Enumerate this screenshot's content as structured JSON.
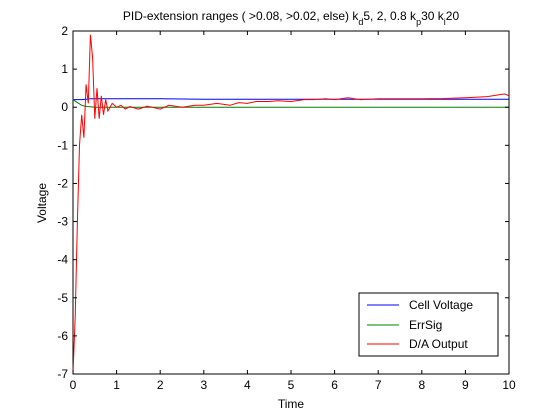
{
  "chart_data": {
    "type": "line",
    "title_parts": [
      {
        "text": "PID-extension ranges ( >0.08, >0.02, else) k",
        "sub": false
      },
      {
        "text": "d",
        "sub": true
      },
      {
        "text": "5, 2, 0.8 k",
        "sub": false
      },
      {
        "text": "p",
        "sub": true
      },
      {
        "text": "30 k",
        "sub": false
      },
      {
        "text": "i",
        "sub": true
      },
      {
        "text": "20",
        "sub": false
      }
    ],
    "xlabel": "Time",
    "ylabel": "Voltage",
    "xlim": [
      0,
      10
    ],
    "ylim": [
      -7,
      2
    ],
    "xticks": [
      0,
      1,
      2,
      3,
      4,
      5,
      6,
      7,
      8,
      9,
      10
    ],
    "yticks": [
      -7,
      -6,
      -5,
      -4,
      -3,
      -2,
      -1,
      0,
      1,
      2
    ],
    "grid": false,
    "legend_position": "lower-right",
    "series": [
      {
        "name": "Cell Voltage",
        "color": "#0000ff",
        "x": [
          0,
          0.1,
          0.2,
          0.3,
          0.4,
          0.5,
          1,
          2,
          3,
          4,
          5,
          6,
          7,
          8,
          9,
          10
        ],
        "y": [
          0.2,
          0.2,
          0.2,
          0.21,
          0.22,
          0.22,
          0.22,
          0.22,
          0.21,
          0.21,
          0.21,
          0.21,
          0.21,
          0.21,
          0.21,
          0.21
        ]
      },
      {
        "name": "ErrSig",
        "color": "#008000",
        "x": [
          0,
          0.1,
          0.2,
          0.3,
          0.4,
          0.5,
          1,
          2,
          3,
          4,
          5,
          6,
          7,
          8,
          9,
          10
        ],
        "y": [
          0.2,
          0.12,
          0.05,
          0.02,
          0.01,
          0.0,
          0.0,
          0.0,
          0.0,
          0.0,
          0.0,
          0.0,
          0.0,
          0.0,
          0.0,
          0.0
        ]
      },
      {
        "name": "D/A Output",
        "color": "#ff0000",
        "x": [
          0,
          0.05,
          0.1,
          0.15,
          0.2,
          0.25,
          0.3,
          0.35,
          0.4,
          0.45,
          0.5,
          0.55,
          0.6,
          0.65,
          0.7,
          0.75,
          0.8,
          0.9,
          1.0,
          1.1,
          1.2,
          1.3,
          1.5,
          1.7,
          2.0,
          2.2,
          2.5,
          2.8,
          3.0,
          3.3,
          3.6,
          3.8,
          4.0,
          4.2,
          4.5,
          4.7,
          5.0,
          5.3,
          5.5,
          5.8,
          6.0,
          6.3,
          6.6,
          7.0,
          7.5,
          8.0,
          8.5,
          9.0,
          9.5,
          9.9,
          10.0
        ],
        "y": [
          -7.0,
          -5.5,
          -3.0,
          -1.0,
          -0.2,
          -0.8,
          0.6,
          0.1,
          1.9,
          1.3,
          -0.3,
          0.5,
          -0.3,
          0.3,
          -0.2,
          0.2,
          -0.1,
          0.1,
          0.0,
          0.05,
          -0.05,
          0.02,
          -0.05,
          0.03,
          -0.05,
          0.05,
          0.0,
          0.05,
          0.05,
          0.1,
          0.05,
          0.12,
          0.1,
          0.15,
          0.15,
          0.17,
          0.15,
          0.2,
          0.2,
          0.22,
          0.2,
          0.25,
          0.2,
          0.22,
          0.22,
          0.22,
          0.23,
          0.25,
          0.28,
          0.35,
          0.3
        ]
      }
    ]
  }
}
